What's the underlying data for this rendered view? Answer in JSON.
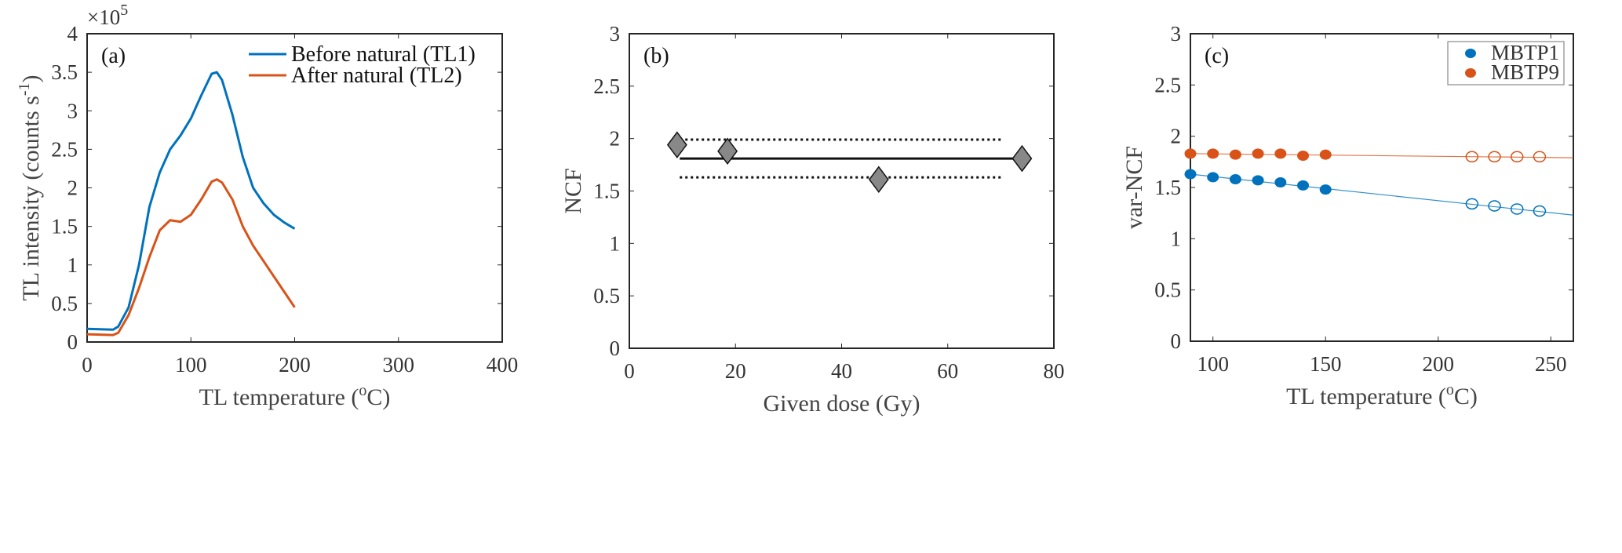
{
  "chart_data": [
    {
      "type": "line",
      "panel_label": "(a)",
      "xlabel": "TL temperature (",
      "xlabel_sup": "o",
      "xlabel_end": "C)",
      "ylabel": "TL intensity (counts s",
      "ylabel_sup": "-1",
      "ylabel_end": ")",
      "exponent_label": "×10",
      "exponent": "5",
      "xlim": [
        0,
        400
      ],
      "ylim": [
        0,
        4
      ],
      "xticks": [
        "0",
        "100",
        "200",
        "300",
        "400"
      ],
      "yticks": [
        "0",
        "0.5",
        "1",
        "1.5",
        "2",
        "2.5",
        "3",
        "3.5",
        "4"
      ],
      "legend_position": "top-right",
      "series": [
        {
          "name": "Before natural (TL1)",
          "color": "#0072BD",
          "x": [
            0,
            25,
            30,
            40,
            50,
            60,
            70,
            80,
            90,
            100,
            110,
            120,
            125,
            130,
            140,
            150,
            160,
            170,
            180,
            190,
            200
          ],
          "y": [
            0.17,
            0.16,
            0.2,
            0.45,
            1.0,
            1.75,
            2.2,
            2.5,
            2.68,
            2.9,
            3.2,
            3.48,
            3.5,
            3.4,
            2.95,
            2.4,
            2.0,
            1.8,
            1.65,
            1.55,
            1.47
          ]
        },
        {
          "name": "After natural (TL2)",
          "color": "#D95319",
          "x": [
            0,
            25,
            30,
            40,
            50,
            60,
            70,
            80,
            90,
            100,
            110,
            120,
            125,
            130,
            140,
            150,
            160,
            170,
            180,
            190,
            200
          ],
          "y": [
            0.1,
            0.09,
            0.12,
            0.35,
            0.7,
            1.1,
            1.45,
            1.58,
            1.56,
            1.65,
            1.85,
            2.08,
            2.11,
            2.07,
            1.85,
            1.5,
            1.25,
            1.05,
            0.85,
            0.65,
            0.45
          ]
        }
      ]
    },
    {
      "type": "scatter",
      "panel_label": "(b)",
      "xlabel": "Given dose (Gy)",
      "ylabel": "NCF",
      "xlim": [
        0,
        80
      ],
      "ylim": [
        0,
        3
      ],
      "xticks": [
        "0",
        "20",
        "40",
        "60",
        "80"
      ],
      "yticks": [
        "0",
        "0.5",
        "1",
        "1.5",
        "2",
        "2.5",
        "3"
      ],
      "points": {
        "x": [
          9,
          18.5,
          47,
          74
        ],
        "y": [
          1.94,
          1.88,
          1.61,
          1.81
        ]
      },
      "mean_line": {
        "y": 1.81,
        "x": [
          9.5,
          74
        ]
      },
      "bounds": {
        "y": [
          1.99,
          1.63
        ],
        "x": [
          9.5,
          70
        ]
      }
    },
    {
      "type": "scatter",
      "panel_label": "(c)",
      "xlabel": "TL temperature (",
      "xlabel_sup": "o",
      "xlabel_end": "C)",
      "ylabel": "var-NCF",
      "xlim": [
        90,
        260
      ],
      "ylim": [
        0,
        3
      ],
      "xticks": [
        "100",
        "150",
        "200",
        "250"
      ],
      "xtick_values": [
        100,
        150,
        200,
        250
      ],
      "yticks": [
        "0",
        "0.5",
        "1",
        "1.5",
        "2",
        "2.5",
        "3"
      ],
      "legend_position": "top-right",
      "series": [
        {
          "name": "MBTP1",
          "color": "#0072BD",
          "filled": {
            "x": [
              90,
              100,
              110,
              120,
              130,
              140,
              150
            ],
            "y": [
              1.63,
              1.6,
              1.58,
              1.57,
              1.55,
              1.52,
              1.48
            ]
          },
          "open": {
            "x": [
              215,
              225,
              235,
              245
            ],
            "y": [
              1.34,
              1.32,
              1.29,
              1.27
            ]
          },
          "fit": {
            "x": [
              90,
              260
            ],
            "y": [
              1.63,
              1.23
            ]
          }
        },
        {
          "name": "MBTP9",
          "color": "#D95319",
          "filled": {
            "x": [
              90,
              100,
              110,
              120,
              130,
              140,
              150
            ],
            "y": [
              1.83,
              1.83,
              1.82,
              1.83,
              1.83,
              1.81,
              1.82
            ]
          },
          "open": {
            "x": [
              215,
              225,
              235,
              245
            ],
            "y": [
              1.8,
              1.8,
              1.8,
              1.8
            ]
          },
          "fit": {
            "x": [
              90,
              260
            ],
            "y": [
              1.83,
              1.79
            ]
          }
        }
      ]
    }
  ]
}
